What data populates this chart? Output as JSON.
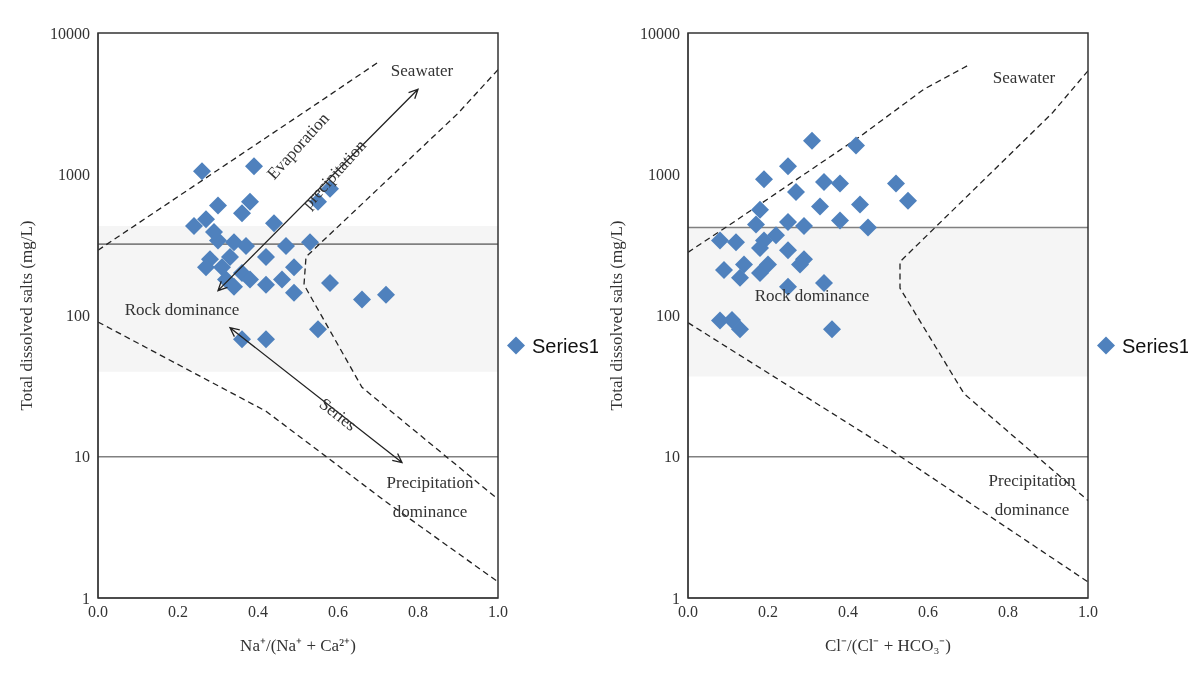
{
  "chart_data": [
    {
      "type": "scatter",
      "xlabel": "Na⁺/(Na⁺ + Ca²⁺)",
      "ylabel": "Total dissolved salts (mg/L)",
      "xlim": [
        0,
        1
      ],
      "xticks": [
        {
          "value": 0,
          "label": "0.0"
        },
        {
          "value": 0.2,
          "label": "0.2"
        },
        {
          "value": 0.4,
          "label": "0.4"
        },
        {
          "value": 0.6,
          "label": "0.6"
        },
        {
          "value": 0.8,
          "label": "0.8"
        },
        {
          "value": 1,
          "label": "1.0"
        }
      ],
      "ylim": [
        1,
        10000
      ],
      "yticks": [
        1,
        10,
        100,
        1000,
        10000
      ],
      "log": "y",
      "grid": false,
      "legend": "right",
      "series": [
        {
          "name": "Series1",
          "color": "#4f81bd",
          "marker": "diamond",
          "x": [
            0.26,
            0.39,
            0.3,
            0.38,
            0.36,
            0.44,
            0.24,
            0.27,
            0.55,
            0.58,
            0.53,
            0.47,
            0.3,
            0.34,
            0.37,
            0.28,
            0.27,
            0.33,
            0.42,
            0.49,
            0.32,
            0.36,
            0.38,
            0.42,
            0.34,
            0.46,
            0.49,
            0.58,
            0.66,
            0.72,
            0.55,
            0.36,
            0.42,
            0.31,
            0.29
          ],
          "values": [
            1050,
            1140,
            600,
            640,
            530,
            450,
            430,
            480,
            640,
            790,
            330,
            310,
            340,
            330,
            310,
            250,
            220,
            260,
            260,
            220,
            180,
            200,
            180,
            165,
            160,
            180,
            145,
            170,
            130,
            140,
            80,
            68,
            68,
            220,
            390
          ]
        },
        {
          "type": "line",
          "color": "#222222",
          "line_style": "dashed",
          "x": [
            0,
            0.55,
            0.7
          ],
          "values": [
            290,
            3200,
            6200
          ]
        },
        {
          "type": "line",
          "color": "#222222",
          "line_style": "dashed",
          "x": [
            1,
            0.9,
            0.52,
            0.515,
            0.66,
            1
          ],
          "values": [
            5500,
            2700,
            260,
            165,
            31,
            5
          ]
        },
        {
          "type": "line",
          "color": "#222222",
          "line_style": "dashed",
          "x": [
            0,
            0.42,
            0.72,
            1
          ],
          "values": [
            90,
            21,
            4.8,
            1.3
          ]
        }
      ],
      "ref_lines": [
        {
          "axis": "y",
          "value": 320,
          "color": "#808080"
        },
        {
          "axis": "y",
          "value": 10,
          "color": "#808080"
        }
      ],
      "bands": [
        {
          "axis": "y",
          "from": 40,
          "to": 430,
          "color": "#f5f5f5"
        }
      ],
      "annotations": [
        "Seawater",
        "Evaporation",
        "precipitation",
        "Rock dominance",
        "Series",
        "Precipitation",
        "dominance"
      ]
    },
    {
      "type": "scatter",
      "xlabel": "Cl⁻/(Cl⁻ + HCO₃⁻)",
      "ylabel": "Total dissolved salts (mg/L)",
      "xlim": [
        0,
        1
      ],
      "xticks": [
        {
          "value": 0,
          "label": "0.0"
        },
        {
          "value": 0.2,
          "label": "0.2"
        },
        {
          "value": 0.4,
          "label": "0.4"
        },
        {
          "value": 0.6,
          "label": "0.6"
        },
        {
          "value": 0.8,
          "label": "0.8"
        },
        {
          "value": 1,
          "label": "1.0"
        }
      ],
      "ylim": [
        1,
        10000
      ],
      "yticks": [
        1,
        10,
        100,
        1000,
        10000
      ],
      "log": "y",
      "grid": false,
      "legend": "right",
      "series": [
        {
          "name": "Series1",
          "color": "#4f81bd",
          "marker": "diamond",
          "x": [
            0.31,
            0.42,
            0.25,
            0.19,
            0.34,
            0.38,
            0.52,
            0.27,
            0.55,
            0.33,
            0.43,
            0.18,
            0.38,
            0.17,
            0.25,
            0.29,
            0.45,
            0.08,
            0.12,
            0.19,
            0.22,
            0.25,
            0.29,
            0.18,
            0.09,
            0.14,
            0.13,
            0.18,
            0.2,
            0.28,
            0.25,
            0.34,
            0.08,
            0.11,
            0.13,
            0.36
          ],
          "values": [
            1730,
            1600,
            1140,
            920,
            880,
            860,
            860,
            750,
            650,
            590,
            610,
            560,
            470,
            440,
            460,
            430,
            420,
            340,
            330,
            340,
            370,
            290,
            250,
            300,
            210,
            230,
            185,
            200,
            230,
            230,
            160,
            170,
            92,
            93,
            80,
            80
          ]
        },
        {
          "type": "line",
          "color": "#222222",
          "line_style": "dashed",
          "x": [
            0,
            0.11,
            0.43,
            0.59,
            0.7
          ],
          "values": [
            280,
            450,
            1850,
            4000,
            5900
          ]
        },
        {
          "type": "line",
          "color": "#222222",
          "line_style": "dashed",
          "x": [
            1,
            0.91,
            0.53,
            0.53,
            0.69,
            1
          ],
          "values": [
            5400,
            2700,
            240,
            156,
            28,
            4.9
          ]
        },
        {
          "type": "line",
          "color": "#222222",
          "line_style": "dashed",
          "x": [
            0,
            0.51,
            1
          ],
          "values": [
            89,
            11,
            1.3
          ]
        }
      ],
      "ref_lines": [
        {
          "axis": "y",
          "value": 420,
          "color": "#808080"
        },
        {
          "axis": "y",
          "value": 10,
          "color": "#808080"
        }
      ],
      "bands": [
        {
          "axis": "y",
          "from": 37,
          "to": 420,
          "color": "#f5f5f5"
        }
      ],
      "annotations": [
        "Seawater",
        "Rock dominance",
        "Precipitation",
        "dominance"
      ]
    }
  ]
}
